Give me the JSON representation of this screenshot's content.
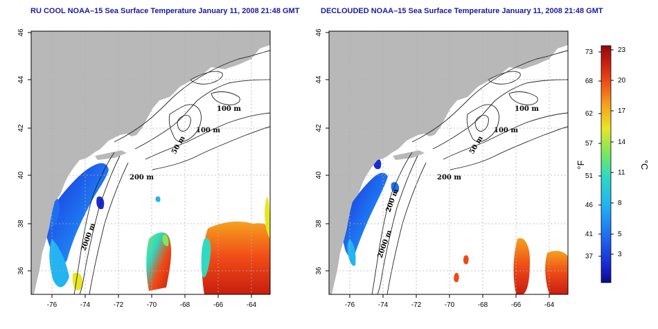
{
  "maps": [
    {
      "id": "left",
      "title": "RU COOL NOAA–15 Sea Surface Temperature January 11, 2008 21:48 GMT",
      "contour_labels": [
        "100 m",
        "100 m",
        "50 m",
        "200 m",
        "2000 m"
      ]
    },
    {
      "id": "right",
      "title": "DECLOUDED NOAA–15 Sea Surface Temperature January 11, 2008 21:48 GMT",
      "contour_labels": [
        "100 m",
        "100 m",
        "50 m",
        "200 m",
        "200 m",
        "2000 m"
      ]
    }
  ],
  "axes": {
    "lon_ticks": [
      "-76",
      "-74",
      "-72",
      "-70",
      "-68",
      "-66",
      "-64"
    ],
    "lat_ticks": [
      "46",
      "44",
      "42",
      "40",
      "38",
      "36"
    ]
  },
  "colorbar": {
    "fahrenheit_unit": "°F",
    "celsius_unit": "°C",
    "fahrenheit_ticks": [
      "73",
      "68",
      "62",
      "57",
      "51",
      "46",
      "41",
      "37"
    ],
    "celsius_ticks": [
      "23",
      "20",
      "17",
      "14",
      "11",
      "8",
      "5",
      "3"
    ],
    "colors": [
      "#0b0a8a",
      "#1a2bd6",
      "#1e6ff0",
      "#23b4f2",
      "#2fd9c2",
      "#7ee85a",
      "#e8e625",
      "#f6a11e",
      "#ef4a16",
      "#c81e10",
      "#8c0b0b"
    ]
  },
  "colors": {
    "land": "#b8b8b8",
    "ocean": "#ffffff",
    "grid": "#b0b0b0"
  }
}
